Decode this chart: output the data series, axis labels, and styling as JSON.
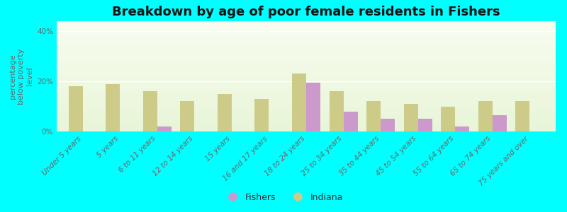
{
  "title": "Breakdown by age of poor female residents in Fishers",
  "ylabel": "percentage\nbelow poverty\nlevel",
  "categories": [
    "Under 5 years",
    "5 years",
    "6 to 11 years",
    "12 to 14 years",
    "15 years",
    "16 and 17 years",
    "18 to 24 years",
    "25 to 34 years",
    "35 to 44 years",
    "45 to 54 years",
    "55 to 64 years",
    "65 to 74 years",
    "75 years and over"
  ],
  "fishers_values": [
    0,
    0,
    2.0,
    0,
    0,
    0,
    19.5,
    8.0,
    5.0,
    5.0,
    2.0,
    6.5,
    0
  ],
  "indiana_values": [
    18.0,
    19.0,
    16.0,
    12.0,
    15.0,
    13.0,
    23.0,
    16.0,
    12.0,
    11.0,
    10.0,
    12.0,
    12.0
  ],
  "fishers_color": "#cc99cc",
  "indiana_color": "#cccc88",
  "background_color": "#00ffff",
  "ylim": [
    0,
    44
  ],
  "yticks": [
    0,
    20,
    40
  ],
  "ytick_labels": [
    "0%",
    "20%",
    "40%"
  ],
  "bar_width": 0.38,
  "title_fontsize": 13,
  "axis_label_fontsize": 8,
  "tick_fontsize": 7.5,
  "legend_fishers": "Fishers",
  "legend_indiana": "Indiana"
}
